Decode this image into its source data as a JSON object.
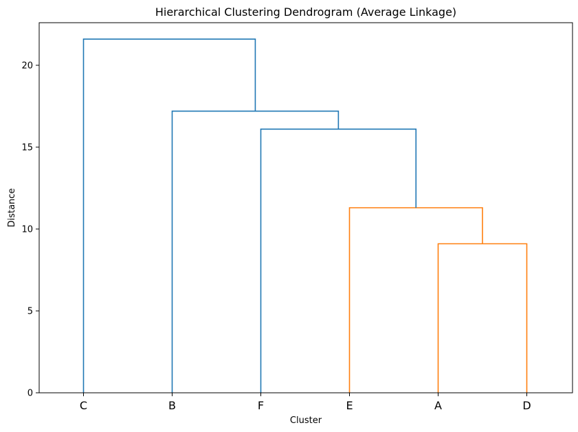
{
  "chart_data": {
    "type": "dendrogram",
    "title": "Hierarchical Clustering Dendrogram (Average Linkage)",
    "xlabel": "Cluster",
    "ylabel": "Distance",
    "leaves": [
      "C",
      "B",
      "F",
      "E",
      "A",
      "D"
    ],
    "ylim": [
      0,
      22.6
    ],
    "yticks": [
      0,
      5,
      10,
      15,
      20
    ],
    "grid": false,
    "colors": {
      "above_threshold": "#1f77b4",
      "cluster": "#ff7f0e"
    },
    "merges": [
      {
        "left": "A",
        "right": "D",
        "height": 9.1,
        "color": "#ff7f0e"
      },
      {
        "left": "E",
        "right": "A+D",
        "height": 11.3,
        "color": "#ff7f0e"
      },
      {
        "left": "F",
        "right": "E+A+D",
        "height": 16.1,
        "color": "#1f77b4"
      },
      {
        "left": "B",
        "right": "F+E+A+D",
        "height": 17.2,
        "color": "#1f77b4"
      },
      {
        "left": "C",
        "right": "B+F+E+A+D",
        "height": 21.6,
        "color": "#1f77b4"
      }
    ]
  }
}
